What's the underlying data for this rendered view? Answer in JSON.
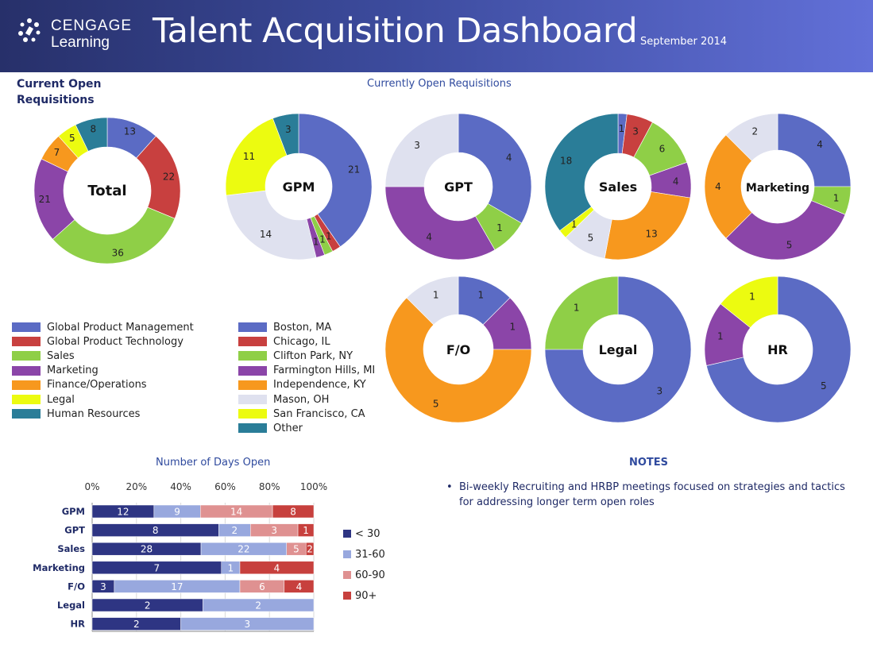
{
  "header": {
    "brand_line1": "CENGAGE",
    "brand_line2": "Learning",
    "title": "Talent Acquisition Dashboard",
    "date": "September 2014"
  },
  "total_section_title_line1": "Current Open",
  "total_section_title_line2": "Requisitions",
  "open_reqs_title": "Currently Open Requisitions",
  "colors": {
    "blue": "#5b6bc4",
    "red": "#c8403f",
    "green": "#8fcf47",
    "purple": "#8b45a8",
    "orange": "#f7981e",
    "lightgray": "#dfe1ef",
    "yellow": "#ecfb10",
    "teal": "#2a7d98",
    "bar_lt30": "#2e3583",
    "bar_31_60": "#98a8de",
    "bar_60_90": "#df9191",
    "bar_90plus": "#c7403d"
  },
  "legend_functions": [
    {
      "label": "Global Product Management",
      "color": "#5b6bc4"
    },
    {
      "label": "Global Product Technology",
      "color": "#c8403f"
    },
    {
      "label": "Sales",
      "color": "#8fcf47"
    },
    {
      "label": "Marketing",
      "color": "#8b45a8"
    },
    {
      "label": "Finance/Operations",
      "color": "#f7981e"
    },
    {
      "label": "Legal",
      "color": "#ecfb10"
    },
    {
      "label": "Human Resources",
      "color": "#2a7d98"
    }
  ],
  "legend_locations": [
    {
      "label": "Boston, MA",
      "color": "#5b6bc4"
    },
    {
      "label": "Chicago, IL",
      "color": "#c8403f"
    },
    {
      "label": "Clifton Park, NY",
      "color": "#8fcf47"
    },
    {
      "label": "Farmington Hills, MI",
      "color": "#8b45a8"
    },
    {
      "label": "Independence, KY",
      "color": "#f7981e"
    },
    {
      "label": "Mason, OH",
      "color": "#dfe1ef"
    },
    {
      "label": "San Francisco, CA",
      "color": "#ecfb10"
    },
    {
      "label": "Other",
      "color": "#2a7d98"
    }
  ],
  "bar_legend": [
    {
      "label": "< 30",
      "color": "#2e3583"
    },
    {
      "label": "31-60",
      "color": "#98a8de"
    },
    {
      "label": "60-90",
      "color": "#df9191"
    },
    {
      "label": "90+",
      "color": "#c7403d"
    }
  ],
  "notes": {
    "title": "NOTES",
    "items": [
      "Bi-weekly Recruiting and HRBP meetings focused on strategies and tactics for addressing longer term open roles"
    ]
  },
  "chart_data": [
    {
      "type": "pie",
      "variant": "donut",
      "title": "Total",
      "slices": [
        {
          "label": "Global Product Management",
          "value": 13,
          "color": "#5b6bc4"
        },
        {
          "label": "Global Product Technology",
          "value": 22,
          "color": "#c8403f"
        },
        {
          "label": "Sales",
          "value": 36,
          "color": "#8fcf47"
        },
        {
          "label": "Marketing",
          "value": 21,
          "color": "#8b45a8"
        },
        {
          "label": "Finance/Operations",
          "value": 7,
          "color": "#f7981e"
        },
        {
          "label": "Legal",
          "value": 5,
          "color": "#ecfb10"
        },
        {
          "label": "Human Resources",
          "value": 8,
          "color": "#2a7d98"
        }
      ]
    },
    {
      "type": "pie",
      "variant": "donut",
      "title": "GPM",
      "slices": [
        {
          "label": "Boston, MA",
          "value": 21,
          "color": "#5b6bc4"
        },
        {
          "label": "Chicago, IL",
          "value": 1,
          "color": "#c8403f"
        },
        {
          "label": "Clifton Park, NY",
          "value": 1,
          "color": "#8fcf47"
        },
        {
          "label": "Farmington Hills, MI",
          "value": 1,
          "color": "#8b45a8"
        },
        {
          "label": "Mason, OH",
          "value": 14,
          "color": "#dfe1ef"
        },
        {
          "label": "San Francisco, CA",
          "value": 11,
          "color": "#ecfb10"
        },
        {
          "label": "Other",
          "value": 3,
          "color": "#2a7d98"
        }
      ]
    },
    {
      "type": "pie",
      "variant": "donut",
      "title": "GPT",
      "slices": [
        {
          "label": "Boston, MA",
          "value": 4,
          "color": "#5b6bc4"
        },
        {
          "label": "Clifton Park, NY",
          "value": 1,
          "color": "#8fcf47"
        },
        {
          "label": "Farmington Hills, MI",
          "value": 4,
          "color": "#8b45a8"
        },
        {
          "label": "Mason, OH",
          "value": 3,
          "color": "#dfe1ef"
        }
      ]
    },
    {
      "type": "pie",
      "variant": "donut",
      "title": "Sales",
      "slices": [
        {
          "label": "Boston, MA",
          "value": 1,
          "color": "#5b6bc4"
        },
        {
          "label": "Chicago, IL",
          "value": 3,
          "color": "#c8403f"
        },
        {
          "label": "Clifton Park, NY",
          "value": 6,
          "color": "#8fcf47"
        },
        {
          "label": "Farmington Hills, MI",
          "value": 4,
          "color": "#8b45a8"
        },
        {
          "label": "Independence, KY",
          "value": 13,
          "color": "#f7981e"
        },
        {
          "label": "Mason, OH",
          "value": 5,
          "color": "#dfe1ef"
        },
        {
          "label": "San Francisco, CA",
          "value": 1,
          "color": "#ecfb10"
        },
        {
          "label": "Other",
          "value": 18,
          "color": "#2a7d98"
        }
      ]
    },
    {
      "type": "pie",
      "variant": "donut",
      "title": "Marketing",
      "slices": [
        {
          "label": "Boston, MA",
          "value": 4,
          "color": "#5b6bc4"
        },
        {
          "label": "Clifton Park, NY",
          "value": 1,
          "color": "#8fcf47"
        },
        {
          "label": "Farmington Hills, MI",
          "value": 5,
          "color": "#8b45a8"
        },
        {
          "label": "Independence, KY",
          "value": 4,
          "color": "#f7981e"
        },
        {
          "label": "Mason, OH",
          "value": 2,
          "color": "#dfe1ef"
        }
      ]
    },
    {
      "type": "pie",
      "variant": "donut",
      "title": "F/O",
      "slices": [
        {
          "label": "Boston, MA",
          "value": 1,
          "color": "#5b6bc4"
        },
        {
          "label": "Farmington Hills, MI",
          "value": 1,
          "color": "#8b45a8"
        },
        {
          "label": "Independence, KY",
          "value": 5,
          "color": "#f7981e"
        },
        {
          "label": "Mason, OH",
          "value": 1,
          "color": "#dfe1ef"
        }
      ]
    },
    {
      "type": "pie",
      "variant": "donut",
      "title": "Legal",
      "slices": [
        {
          "label": "Boston, MA",
          "value": 3,
          "color": "#5b6bc4"
        },
        {
          "label": "Clifton Park, NY",
          "value": 1,
          "color": "#8fcf47"
        }
      ]
    },
    {
      "type": "pie",
      "variant": "donut",
      "title": "HR",
      "slices": [
        {
          "label": "Boston, MA",
          "value": 5,
          "color": "#5b6bc4"
        },
        {
          "label": "Farmington Hills, MI",
          "value": 1,
          "color": "#8b45a8"
        },
        {
          "label": "San Francisco, CA",
          "value": 1,
          "color": "#ecfb10"
        }
      ]
    },
    {
      "type": "bar",
      "orientation": "horizontal",
      "stacked": "percent",
      "title": "Number of Days Open",
      "xticks": [
        "0%",
        "20%",
        "40%",
        "60%",
        "80%",
        "100%"
      ],
      "xlim": [
        0,
        100
      ],
      "categories": [
        "GPM",
        "GPT",
        "Sales",
        "Marketing",
        "F/O",
        "Legal",
        "HR"
      ],
      "series": [
        {
          "name": "< 30",
          "color": "#2e3583",
          "values": [
            12,
            8,
            28,
            7,
            3,
            2,
            2
          ]
        },
        {
          "name": "31-60",
          "color": "#98a8de",
          "values": [
            9,
            2,
            22,
            1,
            17,
            2,
            3
          ]
        },
        {
          "name": "60-90",
          "color": "#df9191",
          "values": [
            14,
            3,
            5,
            0,
            6,
            0,
            0
          ]
        },
        {
          "name": "90+",
          "color": "#c7403d",
          "values": [
            8,
            1,
            2,
            4,
            4,
            0,
            0
          ]
        }
      ],
      "legend": "right"
    }
  ]
}
